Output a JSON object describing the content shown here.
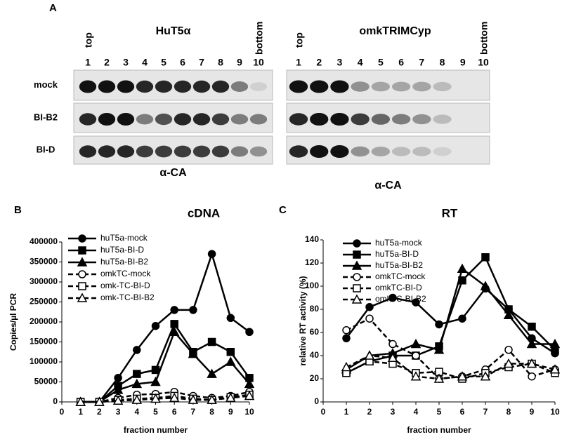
{
  "panel_a": {
    "label": "A",
    "rows": [
      "mock",
      "BI-B2",
      "BI-D"
    ],
    "blots": [
      {
        "title": "HuT5α",
        "top": "top",
        "bottom": "bottom",
        "lanes": [
          "1",
          "2",
          "3",
          "4",
          "5",
          "6",
          "7",
          "8",
          "9",
          "10"
        ],
        "antibody": "α-CA"
      },
      {
        "title": "omkTRIMCyp",
        "top": "top",
        "bottom": "bottom",
        "lanes": [
          "1",
          "2",
          "3",
          "4",
          "5",
          "6",
          "7",
          "8",
          "9",
          "10"
        ],
        "antibody": "α-CA"
      }
    ]
  },
  "chart_data": [
    {
      "type": "line",
      "panel": "B",
      "title": "cDNA",
      "ylabel": "Copies/µl PCR",
      "xlabel": "fraction number",
      "xlim": [
        0,
        10
      ],
      "xticks": [
        0,
        1,
        2,
        3,
        4,
        5,
        6,
        7,
        8,
        9,
        10
      ],
      "ylim": [
        0,
        400000
      ],
      "yticks": [
        0,
        50000,
        100000,
        150000,
        200000,
        250000,
        300000,
        350000,
        400000
      ],
      "x": [
        1,
        2,
        3,
        4,
        5,
        6,
        7,
        8,
        9,
        10
      ],
      "series": [
        {
          "name": "huT5a-mock",
          "color": "#000000",
          "marker": "circle",
          "filled": true,
          "dashed": false,
          "values": [
            0,
            0,
            60000,
            130000,
            190000,
            230000,
            230000,
            370000,
            210000,
            175000
          ]
        },
        {
          "name": "huT5a-BI-D",
          "color": "#000000",
          "marker": "square",
          "filled": true,
          "dashed": false,
          "values": [
            0,
            0,
            40000,
            70000,
            80000,
            195000,
            125000,
            150000,
            125000,
            60000
          ]
        },
        {
          "name": "huT5a-BI-B2",
          "color": "#000000",
          "marker": "triangle",
          "filled": true,
          "dashed": false,
          "values": [
            0,
            0,
            30000,
            45000,
            50000,
            175000,
            120000,
            70000,
            100000,
            45000
          ]
        },
        {
          "name": "omkTC-mock",
          "color": "#000000",
          "marker": "circle",
          "filled": false,
          "dashed": true,
          "values": [
            0,
            0,
            10000,
            18000,
            20000,
            25000,
            15000,
            10000,
            15000,
            25000
          ]
        },
        {
          "name": "omk-TC-BI-D",
          "color": "#000000",
          "marker": "square",
          "filled": false,
          "dashed": true,
          "values": [
            0,
            0,
            5000,
            8000,
            10000,
            15000,
            8000,
            5000,
            12000,
            18000
          ]
        },
        {
          "name": "omk-TC-BI-B2",
          "color": "#000000",
          "marker": "triangle",
          "filled": false,
          "dashed": true,
          "values": [
            0,
            0,
            3000,
            5000,
            8000,
            10000,
            5000,
            5000,
            10000,
            15000
          ]
        }
      ]
    },
    {
      "type": "line",
      "panel": "C",
      "title": "RT",
      "ylabel": "relative RT activity (%)",
      "xlabel": "fraction number",
      "xlim": [
        0,
        10
      ],
      "xticks": [
        0,
        1,
        2,
        3,
        4,
        5,
        6,
        7,
        8,
        9,
        10
      ],
      "ylim": [
        0,
        140
      ],
      "yticks": [
        0,
        20,
        40,
        60,
        80,
        100,
        120,
        140
      ],
      "x": [
        1,
        2,
        3,
        4,
        5,
        6,
        7,
        8,
        9,
        10
      ],
      "series": [
        {
          "name": "huT5a-mock",
          "color": "#000000",
          "marker": "circle",
          "filled": true,
          "dashed": false,
          "values": [
            55,
            82,
            90,
            86,
            67,
            72,
            98,
            80,
            55,
            42
          ]
        },
        {
          "name": "huT5a-BI-D",
          "color": "#000000",
          "marker": "square",
          "filled": true,
          "dashed": false,
          "values": [
            25,
            35,
            40,
            40,
            48,
            105,
            125,
            80,
            65,
            45
          ]
        },
        {
          "name": "huT5a-BI-B2",
          "color": "#000000",
          "marker": "triangle",
          "filled": true,
          "dashed": false,
          "values": [
            28,
            40,
            42,
            50,
            45,
            115,
            100,
            75,
            50,
            50
          ]
        },
        {
          "name": "omkTC-mock",
          "color": "#000000",
          "marker": "circle",
          "filled": false,
          "dashed": true,
          "values": [
            62,
            72,
            50,
            40,
            20,
            22,
            28,
            45,
            22,
            28
          ]
        },
        {
          "name": "omkTC-BI-D",
          "color": "#000000",
          "marker": "square",
          "filled": false,
          "dashed": true,
          "values": [
            25,
            35,
            33,
            25,
            26,
            20,
            25,
            30,
            33,
            25
          ]
        },
        {
          "name": "omkTC-BI-B2",
          "color": "#000000",
          "marker": "triangle",
          "filled": false,
          "dashed": true,
          "values": [
            30,
            40,
            38,
            22,
            20,
            22,
            22,
            33,
            33,
            28
          ]
        }
      ]
    }
  ]
}
